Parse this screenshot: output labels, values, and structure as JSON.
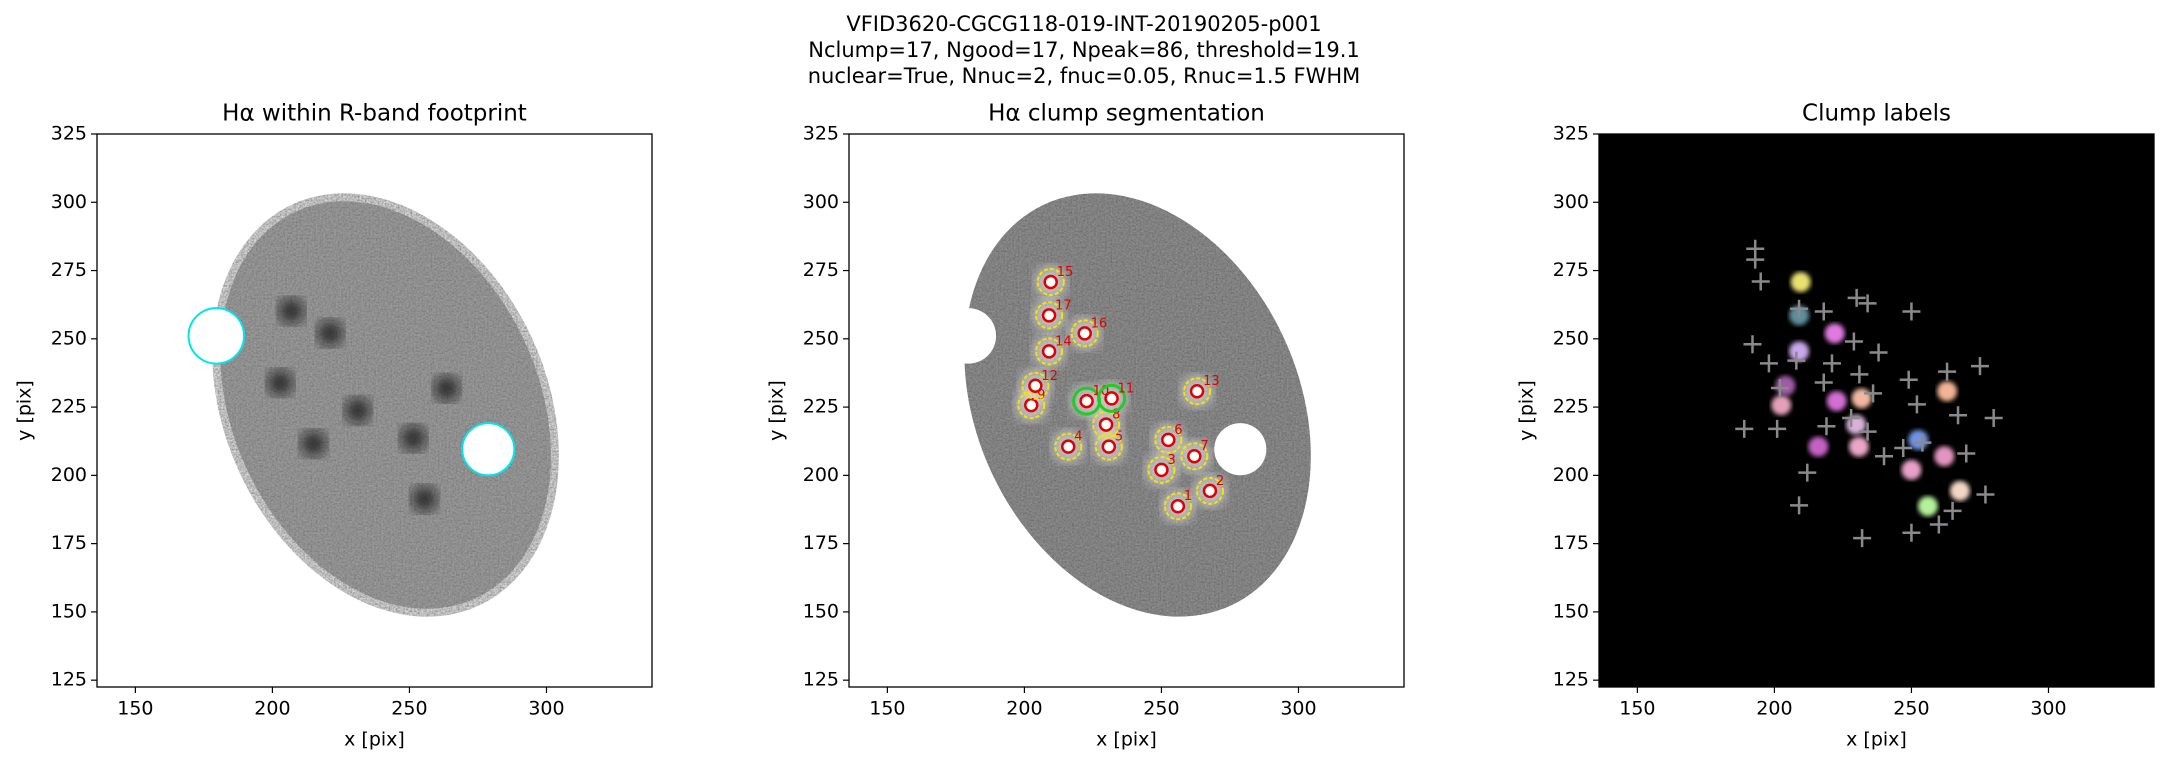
{
  "figure": {
    "title_lines": [
      "VFID3620-CGCG118-019-INT-20190205-p001",
      "Nclump=17, Ngood=17, Npeak=86, threshold=19.1",
      "nuclear=True, Nnuc=2, fnuc=0.05, Rnuc=1.5 FWHM"
    ]
  },
  "chart_data": [
    {
      "type": "image",
      "title": "Hα within R-band footprint",
      "xlabel": "x [pix]",
      "ylabel": "y [pix]",
      "xlim": [
        136,
        338.5
      ],
      "ylim": [
        122.5,
        325
      ],
      "xticks": [
        150,
        200,
        250,
        300
      ],
      "yticks": [
        125,
        150,
        175,
        200,
        225,
        250,
        275,
        300,
        325
      ],
      "outline_color": "#00e5ee"
    },
    {
      "type": "segmentation",
      "title": "Hα clump segmentation",
      "xlabel": "x [pix]",
      "ylabel": "y [pix]",
      "xlim": [
        136,
        338.5
      ],
      "ylim": [
        122.5,
        325
      ],
      "xticks": [
        150,
        200,
        250,
        300
      ],
      "yticks": [
        125,
        150,
        175,
        200,
        225,
        250,
        275,
        300,
        325
      ],
      "marker_color": "#e00000",
      "contour_color": "#f5e400",
      "nuclear_color": "#22cc22",
      "nuclear_ids": [
        10,
        11
      ],
      "clumps": {
        "ids": [
          1,
          2,
          3,
          4,
          5,
          6,
          7,
          8,
          9,
          10,
          11,
          12,
          13,
          14,
          15,
          16,
          17
        ],
        "x": [
          256,
          267.7,
          250,
          216,
          230.8,
          252.5,
          262,
          229.8,
          202.5,
          222.7,
          231.8,
          204,
          263,
          209,
          209.6,
          222,
          209
        ],
        "y": [
          188.7,
          194.3,
          202,
          210.5,
          210.5,
          213,
          207,
          218.6,
          225.7,
          227.2,
          228.2,
          232.8,
          230.8,
          245.4,
          270.8,
          252,
          258.6
        ]
      }
    },
    {
      "type": "labels",
      "title": "Clump labels",
      "xlabel": "x [pix]",
      "ylabel": "y [pix]",
      "xlim": [
        136,
        338.5
      ],
      "ylim": [
        122.5,
        325
      ],
      "xticks": [
        150,
        200,
        250,
        300
      ],
      "yticks": [
        125,
        150,
        175,
        200,
        225,
        250,
        275,
        300,
        325
      ],
      "background": "#000000",
      "peak_color": "#8a8a8a",
      "clump_colors": [
        "#b4f29a",
        "#f3d6c4",
        "#e8a0c8",
        "#c462c4",
        "#e9a6c6",
        "#6f93e2",
        "#e394c0",
        "#d8b0d8",
        "#e3a0b8",
        "#d070d0",
        "#f0b8a0",
        "#a25aa8",
        "#f2b496",
        "#c8a8e8",
        "#e8e070",
        "#e07ae0",
        "#5f8d9d"
      ],
      "peaks": {
        "x": [
          193,
          193,
          195,
          209,
          218,
          230,
          234,
          250,
          192,
          198,
          229,
          208,
          221,
          231,
          202,
          218,
          236,
          249,
          263,
          275,
          252,
          267,
          280,
          201,
          219,
          234,
          247,
          270,
          277,
          265,
          260,
          250,
          232,
          209,
          212,
          189,
          228,
          240,
          254,
          238
        ],
        "y": [
          283,
          279,
          271,
          261,
          260,
          265,
          263,
          260,
          248,
          241,
          249,
          242,
          241,
          237,
          232,
          234,
          230,
          235,
          238,
          240,
          226,
          222,
          221,
          217,
          218,
          216,
          210,
          208,
          193,
          187,
          182,
          179,
          177,
          189,
          201,
          217,
          221,
          207,
          212,
          245
        ]
      }
    }
  ]
}
